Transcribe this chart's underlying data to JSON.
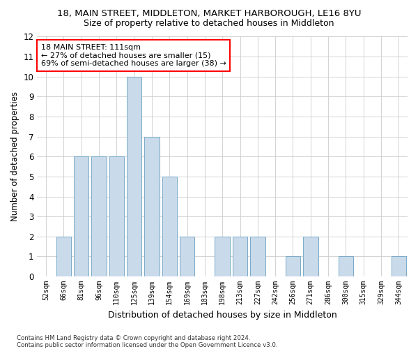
{
  "title": "18, MAIN STREET, MIDDLETON, MARKET HARBOROUGH, LE16 8YU",
  "subtitle": "Size of property relative to detached houses in Middleton",
  "xlabel": "Distribution of detached houses by size in Middleton",
  "ylabel": "Number of detached properties",
  "categories": [
    "52sqm",
    "66sqm",
    "81sqm",
    "96sqm",
    "110sqm",
    "125sqm",
    "139sqm",
    "154sqm",
    "169sqm",
    "183sqm",
    "198sqm",
    "213sqm",
    "227sqm",
    "242sqm",
    "256sqm",
    "271sqm",
    "286sqm",
    "300sqm",
    "315sqm",
    "329sqm",
    "344sqm"
  ],
  "values": [
    0,
    2,
    6,
    6,
    6,
    10,
    7,
    5,
    2,
    0,
    2,
    2,
    2,
    0,
    1,
    2,
    0,
    1,
    0,
    0,
    1
  ],
  "bar_color_default": "#c9daea",
  "bar_edge_color": "#7aaac8",
  "ylim": [
    0,
    12
  ],
  "yticks": [
    0,
    1,
    2,
    3,
    4,
    5,
    6,
    7,
    8,
    9,
    10,
    11,
    12
  ],
  "annotation_text": "18 MAIN STREET: 111sqm\n← 27% of detached houses are smaller (15)\n69% of semi-detached houses are larger (38) →",
  "annotation_box_color": "white",
  "annotation_box_edge_color": "red",
  "footer1": "Contains HM Land Registry data © Crown copyright and database right 2024.",
  "footer2": "Contains public sector information licensed under the Open Government Licence v3.0.",
  "bg_color": "white",
  "grid_color": "#cccccc",
  "title_fontsize": 9.5,
  "subtitle_fontsize": 9,
  "ylabel_fontsize": 8.5,
  "xlabel_fontsize": 9
}
